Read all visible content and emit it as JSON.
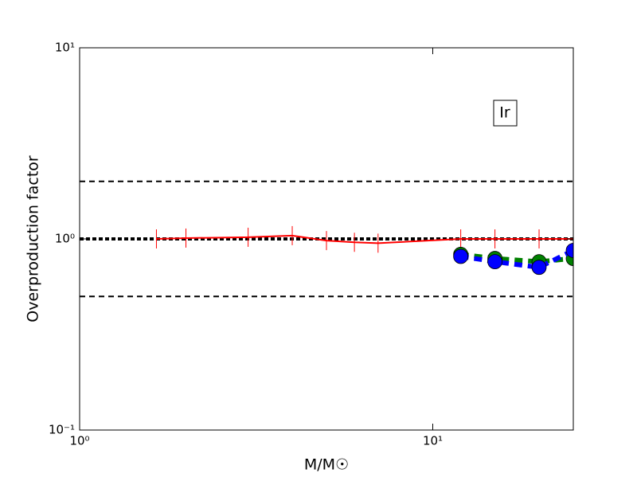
{
  "chart_data": {
    "type": "line",
    "xlabel": "M/M☉",
    "ylabel": "Overproduction factor",
    "annotation": "Ir",
    "xscale": "log",
    "yscale": "log",
    "xlim": [
      1,
      25
    ],
    "ylim": [
      0.1,
      10
    ],
    "xticks": [
      {
        "value": 1,
        "label": "10⁰"
      },
      {
        "value": 10,
        "label": "10¹"
      }
    ],
    "yticks": [
      {
        "value": 0.1,
        "label": "10⁻¹"
      },
      {
        "value": 1,
        "label": "10⁰"
      },
      {
        "value": 10,
        "label": "10¹"
      }
    ],
    "hlines": [
      {
        "value": 2,
        "color": "#000000",
        "style": "dashed"
      },
      {
        "value": 0.5,
        "color": "#000000",
        "style": "dashed"
      },
      {
        "value": 1,
        "color": "#000000",
        "style": "dotted"
      }
    ],
    "series": [
      {
        "color": "#ff0000",
        "marker": "vline",
        "style": "solid",
        "x": [
          1.65,
          2,
          3,
          4,
          5,
          6,
          7,
          12,
          15,
          20,
          25
        ],
        "values": [
          1.0,
          1.01,
          1.02,
          1.04,
          0.98,
          0.96,
          0.95,
          1.0,
          1.0,
          1.0,
          1.0
        ]
      },
      {
        "color": "#008000",
        "marker": "circle",
        "style": "dashed",
        "x": [
          12,
          15,
          20,
          25
        ],
        "values": [
          0.83,
          0.79,
          0.76,
          0.79
        ]
      },
      {
        "color": "#0000ff",
        "marker": "circle",
        "style": "dashed",
        "x": [
          12,
          15,
          20,
          25
        ],
        "values": [
          0.81,
          0.76,
          0.71,
          0.87
        ]
      }
    ]
  }
}
